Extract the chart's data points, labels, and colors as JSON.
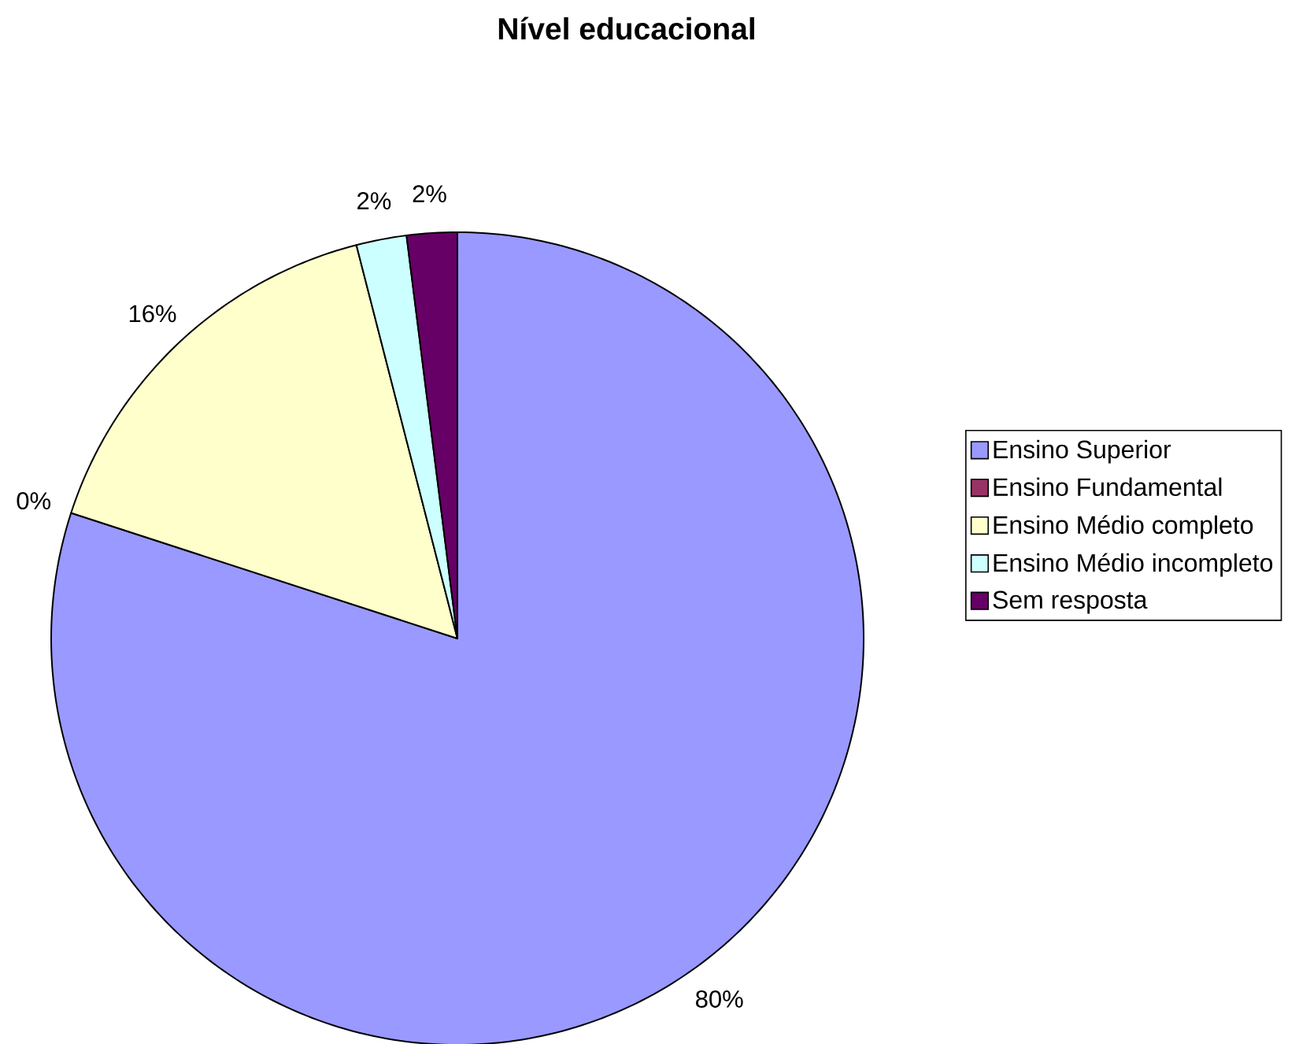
{
  "chart_data": {
    "type": "pie",
    "title": "Nível educacional",
    "categories": [
      "Ensino Superior",
      "Ensino Fundamental",
      "Ensino Médio completo",
      "Ensino Médio incompleto",
      "Sem resposta"
    ],
    "values": [
      80,
      0,
      16,
      2,
      2
    ],
    "colors": [
      "#9999ff",
      "#993366",
      "#ffffcc",
      "#ccffff",
      "#660066"
    ],
    "value_labels": [
      "80%",
      "0%",
      "16%",
      "2%",
      "2%"
    ],
    "legend": "right"
  }
}
